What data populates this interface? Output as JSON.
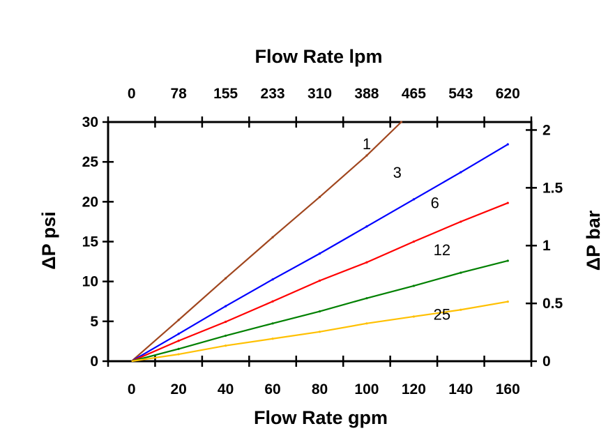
{
  "chart_data": {
    "type": "line",
    "title": "",
    "xlabel": "Flow Rate gpm",
    "x2label": "Flow Rate lpm",
    "ylabel": "ΔP psi",
    "y2label": "ΔP bar",
    "xlim": [
      -10,
      170
    ],
    "ylim": [
      0,
      30
    ],
    "y2lim": [
      0,
      2.069
    ],
    "grid": false,
    "x_tick_labels": [
      "0",
      "20",
      "40",
      "60",
      "80",
      "100",
      "120",
      "140",
      "160"
    ],
    "x2_tick_labels": [
      "0",
      "78",
      "155",
      "233",
      "310",
      "388",
      "465",
      "543",
      "620"
    ],
    "y_tick_labels": [
      "0",
      "5",
      "10",
      "15",
      "20",
      "25",
      "30"
    ],
    "y2_tick_labels": [
      "0",
      "0.5",
      "1",
      "1.5",
      "2"
    ],
    "series": [
      {
        "name": "1",
        "color": "#a0461e",
        "x": [
          0,
          20,
          40,
          60,
          80,
          100,
          114.7
        ],
        "y": [
          0,
          5.17,
          10.4,
          15.55,
          20.6,
          25.8,
          30
        ]
      },
      {
        "name": "3",
        "color": "#0000ff",
        "x": [
          0,
          20,
          40,
          60,
          80,
          100,
          120,
          140,
          160
        ],
        "y": [
          0,
          3.43,
          6.9,
          10.26,
          13.5,
          16.9,
          20.3,
          23.7,
          27.2
        ]
      },
      {
        "name": "6",
        "color": "#ff0000",
        "x": [
          0,
          20,
          40,
          60,
          80,
          100,
          120,
          140,
          160
        ],
        "y": [
          0,
          2.56,
          4.94,
          7.5,
          10.1,
          12.4,
          15.0,
          17.5,
          19.85
        ]
      },
      {
        "name": "12",
        "color": "#008000",
        "x": [
          0,
          20,
          40,
          60,
          80,
          100,
          120,
          140,
          160
        ],
        "y": [
          0,
          1.54,
          3.2,
          4.74,
          6.25,
          7.9,
          9.45,
          11.1,
          12.6
        ]
      },
      {
        "name": "25",
        "color": "#ffc000",
        "x": [
          0,
          20,
          40,
          60,
          80,
          100,
          120,
          140,
          160
        ],
        "y": [
          0,
          0.87,
          1.95,
          2.82,
          3.69,
          4.74,
          5.6,
          6.45,
          7.47
        ]
      }
    ]
  }
}
